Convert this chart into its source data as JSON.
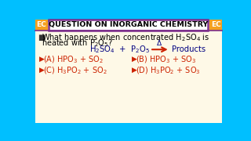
{
  "bg_color": "#00bfff",
  "content_bg": "#fef9e7",
  "header_bg": "#ffffff",
  "header_border": "#7b2d8b",
  "header_text": "QUESTION ON INORGANIC CHEMISTRY",
  "header_text_color": "#000000",
  "ec_box_color": "#f4a020",
  "ec_text": "EC",
  "ec_text_color": "#ffffff",
  "question_color": "#000000",
  "reaction_color": "#000080",
  "arrow_color": "#cc2200",
  "option_color": "#cc2200",
  "bullet_color": "#cc2200"
}
